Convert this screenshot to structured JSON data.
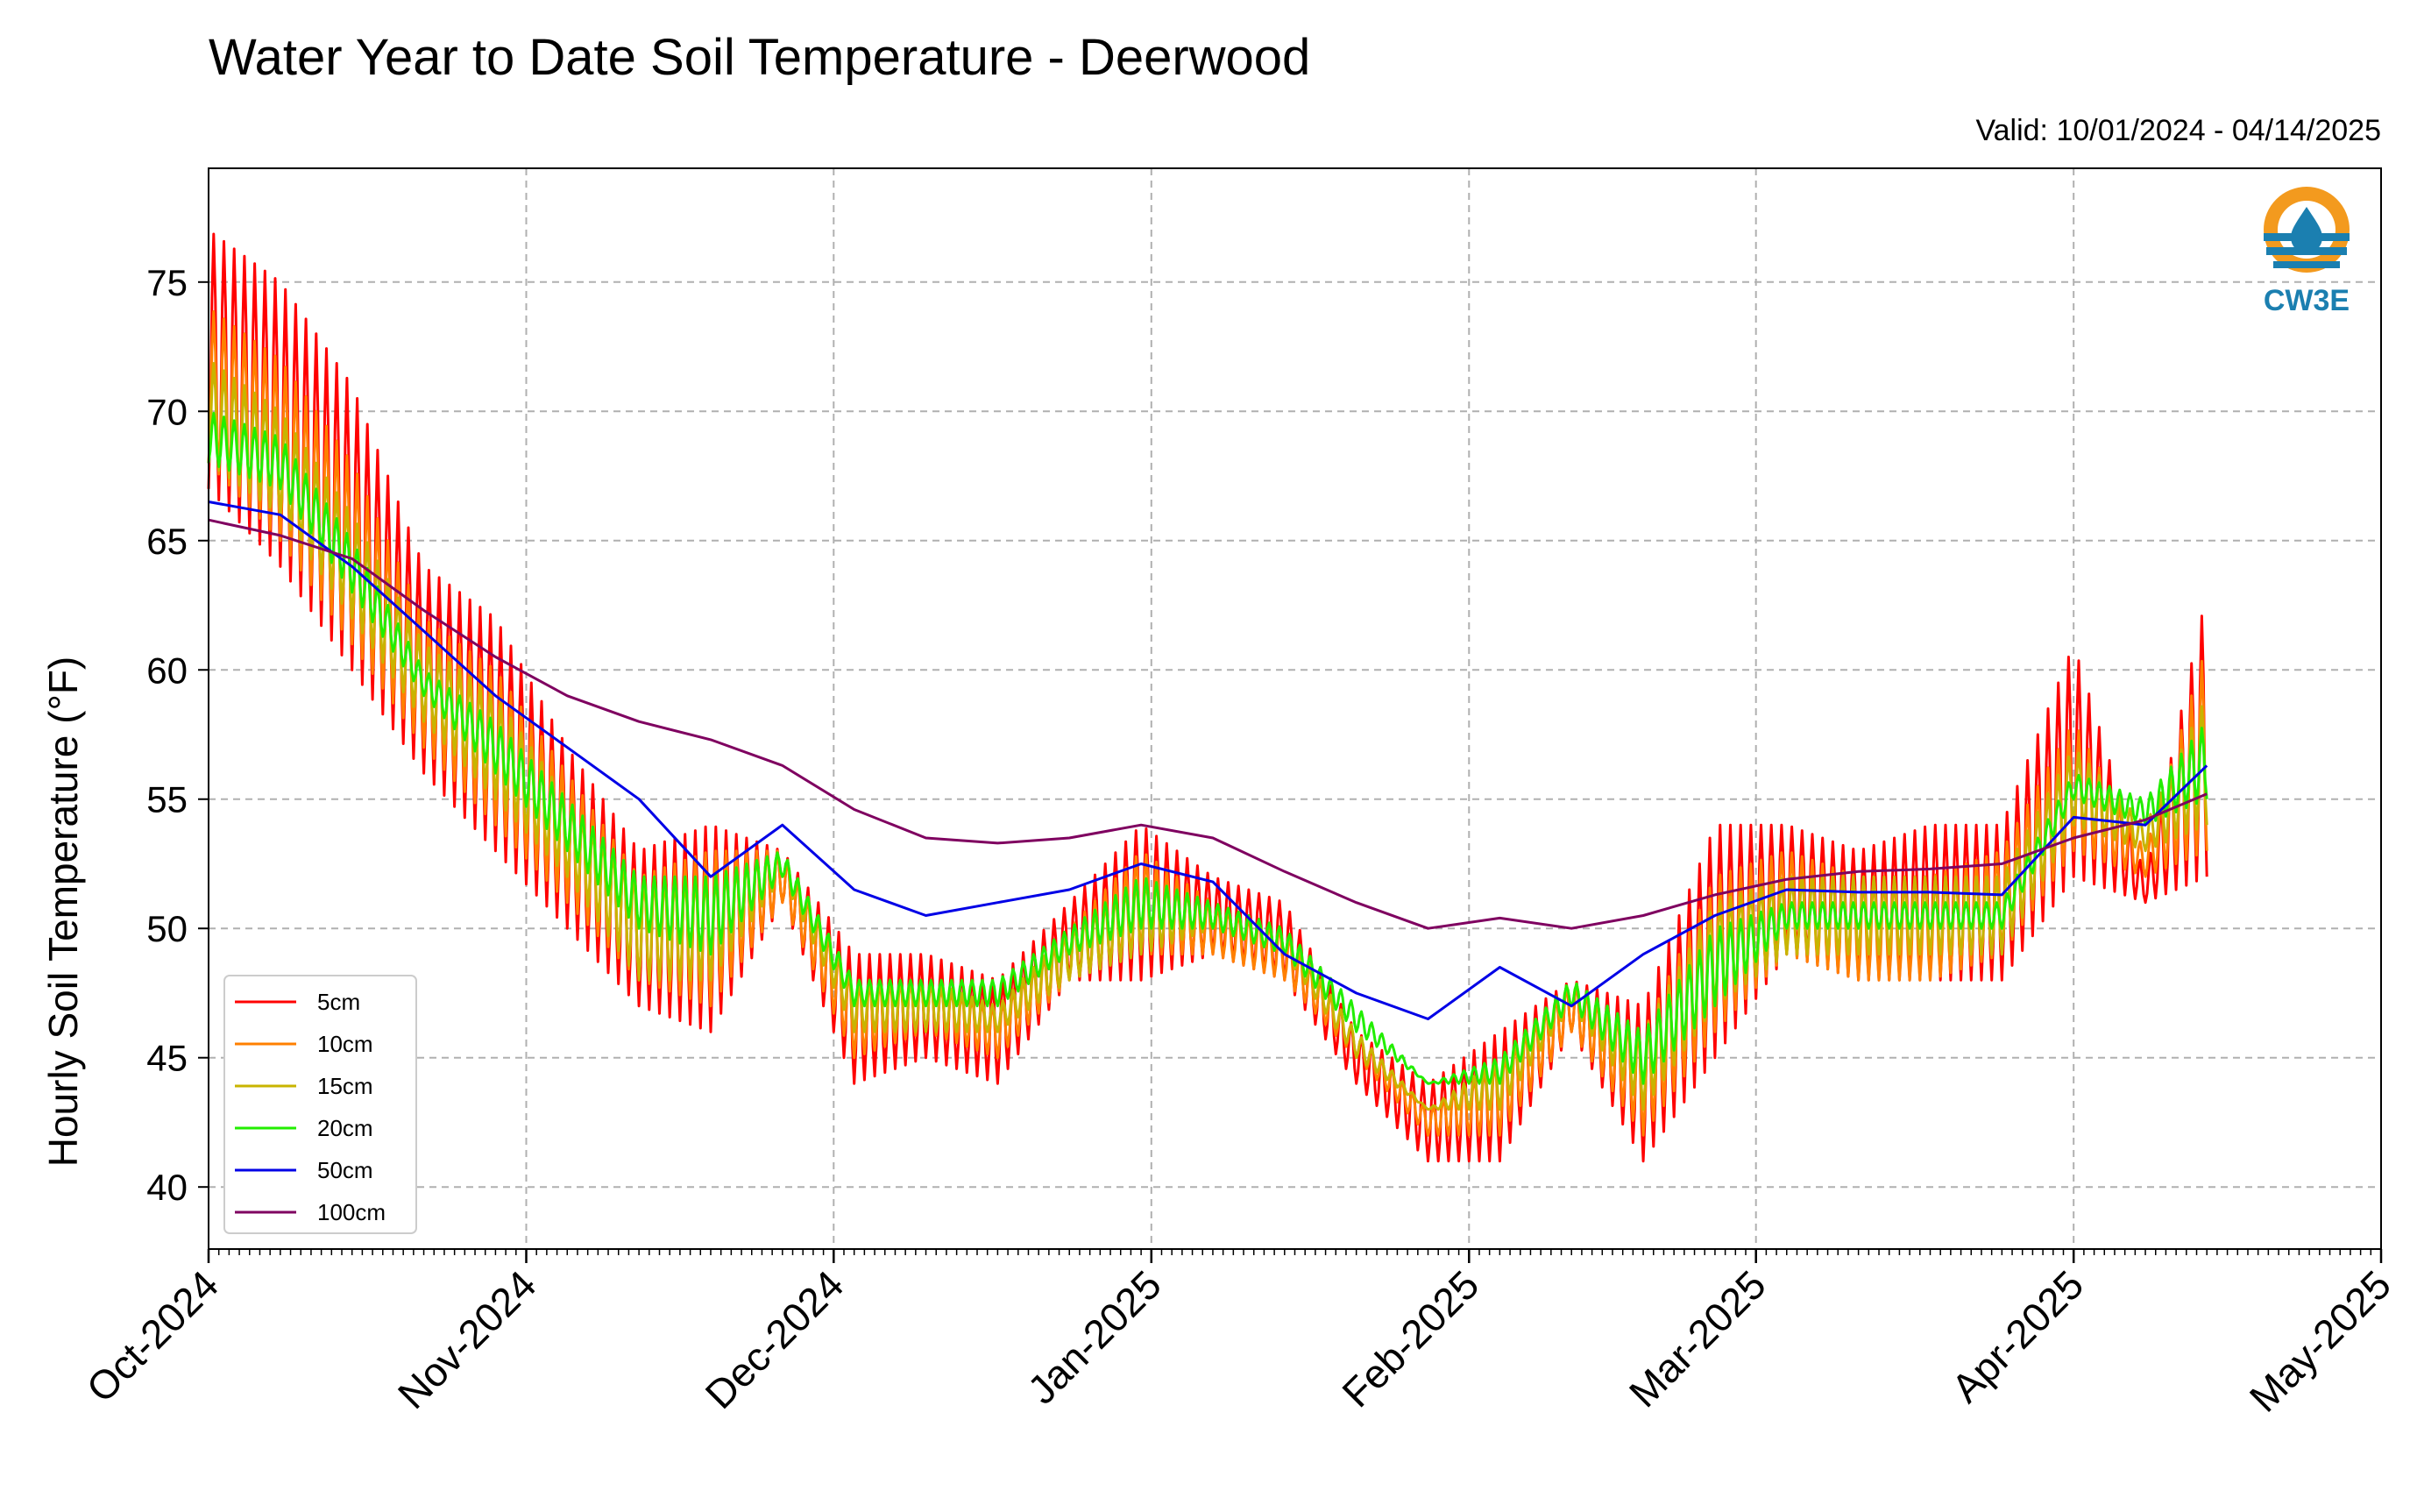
{
  "colors": {
    "5cm": "#ff0000",
    "10cm": "#ff8000",
    "15cm": "#c8b400",
    "20cm": "#22ee00",
    "50cm": "#0000e6",
    "100cm": "#7f0060",
    "logo_orange": "#f39a1e",
    "logo_blue": "#1b7fb0"
  },
  "logo": {
    "text": "CW3E",
    "icon": "water-drop-logo-icon"
  },
  "chart_data": {
    "type": "line",
    "title": "Water Year to Date Soil Temperature - Deerwood",
    "subtitle": "Valid: 10/01/2024 - 04/14/2025",
    "xlabel": "",
    "ylabel": "Hourly Soil Temperature (°F)",
    "x_range": [
      "2024-10-01",
      "2025-05-01"
    ],
    "ylim": [
      37.6,
      79.4
    ],
    "grid": true,
    "legend_position": "lower-left",
    "x_ticks": [
      {
        "date": "2024-10-01",
        "label": "Oct-2024"
      },
      {
        "date": "2024-11-01",
        "label": "Nov-2024"
      },
      {
        "date": "2024-12-01",
        "label": "Dec-2024"
      },
      {
        "date": "2025-01-01",
        "label": "Jan-2025"
      },
      {
        "date": "2025-02-01",
        "label": "Feb-2025"
      },
      {
        "date": "2025-03-01",
        "label": "Mar-2025"
      },
      {
        "date": "2025-04-01",
        "label": "Apr-2025"
      },
      {
        "date": "2025-05-01",
        "label": "May-2025"
      }
    ],
    "y_ticks": [
      40,
      45,
      50,
      55,
      60,
      65,
      70,
      75
    ],
    "series_note": "Daily min/max envelopes for shallow sensors; daily means for deep sensors",
    "series": [
      {
        "name": "5cm",
        "x": [
          "2024-10-01",
          "2024-10-08",
          "2024-10-15",
          "2024-10-22",
          "2024-10-29",
          "2024-11-05",
          "2024-11-12",
          "2024-11-19",
          "2024-11-26",
          "2024-12-03",
          "2024-12-10",
          "2024-12-17",
          "2024-12-24",
          "2024-12-31",
          "2025-01-07",
          "2025-01-14",
          "2025-01-21",
          "2025-01-28",
          "2025-02-04",
          "2025-02-11",
          "2025-02-18",
          "2025-02-25",
          "2025-03-04",
          "2025-03-11",
          "2025-03-18",
          "2025-03-25",
          "2025-04-01",
          "2025-04-08",
          "2025-04-14"
        ],
        "min": [
          67,
          64,
          60,
          56,
          53,
          50,
          47,
          46,
          51,
          44,
          45,
          44,
          48,
          48,
          49,
          48,
          44,
          41,
          41,
          46,
          41,
          45,
          49,
          48,
          48,
          48,
          52,
          51,
          52
        ],
        "max": [
          77,
          75,
          71,
          64,
          62,
          57,
          53,
          54,
          53,
          49,
          49,
          48,
          51,
          54,
          52,
          51,
          46,
          44,
          46,
          48,
          47,
          54,
          54,
          53,
          54,
          54,
          61,
          52,
          63
        ]
      },
      {
        "name": "10cm",
        "x": [
          "2024-10-01",
          "2024-10-08",
          "2024-10-15",
          "2024-10-22",
          "2024-10-29",
          "2024-11-05",
          "2024-11-12",
          "2024-11-19",
          "2024-11-26",
          "2024-12-03",
          "2024-12-10",
          "2024-12-17",
          "2024-12-24",
          "2024-12-31",
          "2025-01-07",
          "2025-01-14",
          "2025-01-21",
          "2025-01-28",
          "2025-02-04",
          "2025-02-11",
          "2025-02-18",
          "2025-02-25",
          "2025-03-04",
          "2025-03-11",
          "2025-03-18",
          "2025-03-25",
          "2025-04-01",
          "2025-04-08",
          "2025-04-14"
        ],
        "min": [
          68,
          65,
          61,
          57,
          54,
          51,
          48,
          47,
          51,
          45,
          46,
          45,
          48,
          49,
          49,
          48,
          45,
          42,
          42,
          46,
          42,
          46,
          49,
          48,
          48,
          49,
          53,
          52,
          53
        ],
        "max": [
          74,
          72,
          68,
          62,
          60,
          56,
          52,
          53,
          53,
          48,
          48,
          47,
          50,
          53,
          51,
          50,
          46,
          43,
          45,
          48,
          46,
          52,
          53,
          52,
          52,
          53,
          58,
          53,
          61
        ]
      },
      {
        "name": "15cm",
        "x": [
          "2024-10-01",
          "2024-10-08",
          "2024-10-15",
          "2024-10-22",
          "2024-10-29",
          "2024-11-05",
          "2024-11-12",
          "2024-11-19",
          "2024-11-26",
          "2024-12-03",
          "2024-12-10",
          "2024-12-17",
          "2024-12-24",
          "2024-12-31",
          "2025-01-07",
          "2025-01-14",
          "2025-01-21",
          "2025-01-28",
          "2025-02-04",
          "2025-02-11",
          "2025-02-18",
          "2025-02-25",
          "2025-03-04",
          "2025-03-11",
          "2025-03-18",
          "2025-03-25",
          "2025-04-01",
          "2025-04-08",
          "2025-04-14"
        ],
        "min": [
          68,
          66,
          62,
          58,
          55,
          52,
          48,
          48,
          52,
          46,
          46,
          46,
          48,
          49,
          50,
          49,
          45,
          43,
          43,
          47,
          43,
          47,
          49,
          49,
          49,
          49,
          54,
          53,
          54
        ],
        "max": [
          72,
          70,
          66,
          61,
          59,
          55,
          52,
          52,
          53,
          48,
          48,
          47,
          50,
          52,
          51,
          50,
          46,
          43,
          45,
          48,
          46,
          51,
          52,
          52,
          52,
          52,
          57,
          54,
          59
        ]
      },
      {
        "name": "20cm",
        "x": [
          "2024-10-01",
          "2024-10-08",
          "2024-10-15",
          "2024-10-22",
          "2024-10-29",
          "2024-11-05",
          "2024-11-12",
          "2024-11-19",
          "2024-11-26",
          "2024-12-03",
          "2024-12-10",
          "2024-12-17",
          "2024-12-24",
          "2024-12-31",
          "2025-01-07",
          "2025-01-14",
          "2025-01-21",
          "2025-01-28",
          "2025-02-04",
          "2025-02-11",
          "2025-02-18",
          "2025-02-25",
          "2025-03-04",
          "2025-03-11",
          "2025-03-18",
          "2025-03-25",
          "2025-04-01",
          "2025-04-08",
          "2025-04-14"
        ],
        "min": [
          68,
          67,
          63,
          59,
          56,
          53,
          50,
          49,
          52,
          47,
          47,
          47,
          49,
          50,
          50,
          49,
          46,
          44,
          44,
          47,
          44,
          47,
          50,
          50,
          50,
          50,
          55,
          54,
          55
        ],
        "max": [
          70,
          69,
          65,
          60,
          58,
          55,
          52,
          52,
          53,
          48,
          48,
          48,
          50,
          52,
          51,
          50,
          47,
          44,
          45,
          48,
          46,
          50,
          51,
          51,
          51,
          51,
          56,
          55,
          58
        ]
      },
      {
        "name": "50cm",
        "x": [
          "2024-10-01",
          "2024-10-08",
          "2024-10-15",
          "2024-10-22",
          "2024-10-29",
          "2024-11-05",
          "2024-11-12",
          "2024-11-19",
          "2024-11-26",
          "2024-12-03",
          "2024-12-10",
          "2024-12-17",
          "2024-12-24",
          "2024-12-31",
          "2025-01-07",
          "2025-01-14",
          "2025-01-21",
          "2025-01-28",
          "2025-02-04",
          "2025-02-11",
          "2025-02-18",
          "2025-02-25",
          "2025-03-04",
          "2025-03-11",
          "2025-03-18",
          "2025-03-25",
          "2025-04-01",
          "2025-04-08",
          "2025-04-14"
        ],
        "values": [
          66.5,
          66,
          64,
          61.5,
          59,
          57,
          55,
          52,
          54,
          51.5,
          50.5,
          51,
          51.5,
          52.5,
          51.8,
          49,
          47.5,
          46.5,
          48.5,
          47,
          49,
          50.5,
          51.5,
          51.4,
          51.4,
          51.3,
          54.3,
          54,
          56.3
        ]
      },
      {
        "name": "100cm",
        "x": [
          "2024-10-01",
          "2024-10-08",
          "2024-10-15",
          "2024-10-22",
          "2024-10-29",
          "2024-11-05",
          "2024-11-12",
          "2024-11-19",
          "2024-11-26",
          "2024-12-03",
          "2024-12-10",
          "2024-12-17",
          "2024-12-24",
          "2024-12-31",
          "2025-01-07",
          "2025-01-14",
          "2025-01-21",
          "2025-01-28",
          "2025-02-04",
          "2025-02-11",
          "2025-02-18",
          "2025-02-25",
          "2025-03-04",
          "2025-03-11",
          "2025-03-18",
          "2025-03-25",
          "2025-04-01",
          "2025-04-08",
          "2025-04-14"
        ],
        "values": [
          65.8,
          65.2,
          64.3,
          62.3,
          60.5,
          59,
          58,
          57.3,
          56.3,
          54.6,
          53.5,
          53.3,
          53.5,
          54,
          53.5,
          52.2,
          51,
          50,
          50.4,
          50,
          50.5,
          51.3,
          51.9,
          52.2,
          52.3,
          52.5,
          53.5,
          54.2,
          55.2
        ]
      }
    ]
  }
}
